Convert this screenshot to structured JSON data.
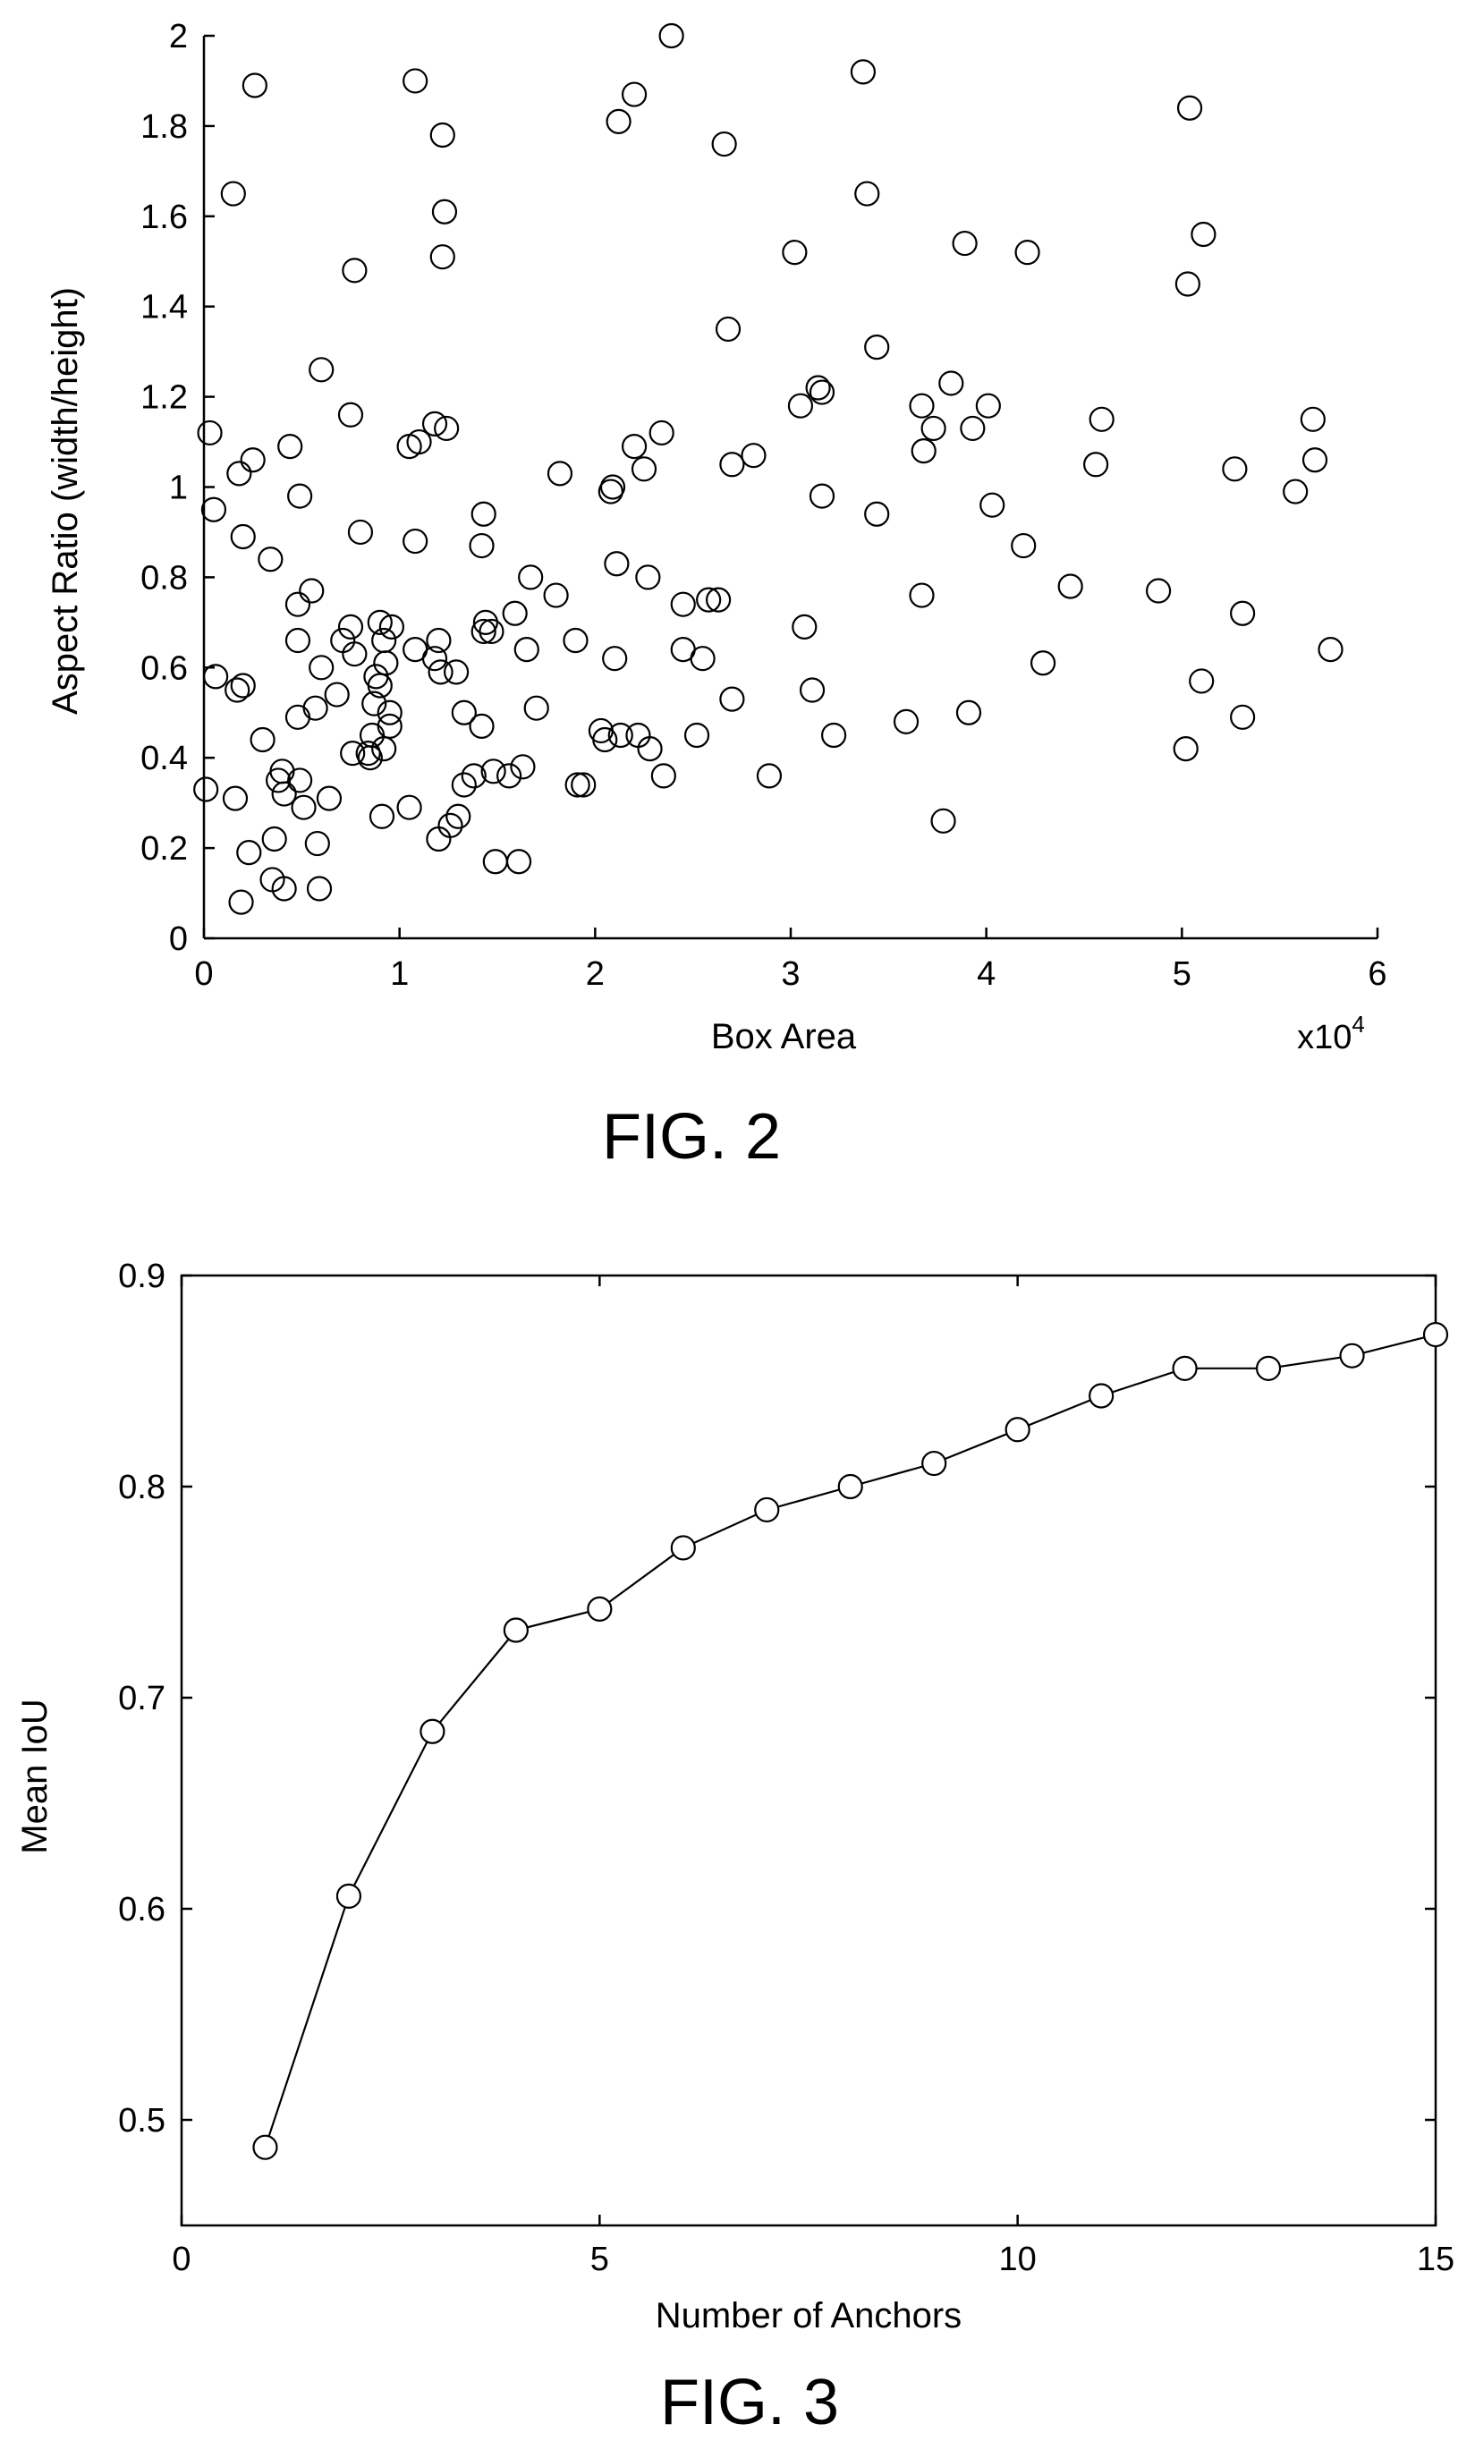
{
  "figures": [
    {
      "caption": "FIG. 2"
    },
    {
      "caption": "FIG. 3"
    }
  ],
  "chart_data": [
    {
      "type": "scatter",
      "title": "",
      "xlabel": "Box Area",
      "ylabel": "Aspect Ratio (width/height)",
      "x_multiplier_label": "x10^4",
      "xlim": [
        0,
        60000
      ],
      "ylim": [
        0,
        2
      ],
      "xticks": [
        0,
        10000,
        20000,
        30000,
        40000,
        50000,
        60000
      ],
      "xtick_labels": [
        "0",
        "1",
        "2",
        "3",
        "4",
        "5",
        "6"
      ],
      "yticks": [
        0,
        0.2,
        0.4,
        0.6,
        0.8,
        1.0,
        1.2,
        1.4,
        1.6,
        1.8,
        2.0
      ],
      "ytick_labels": [
        "0",
        "0.2",
        "0.4",
        "0.6",
        "0.8",
        "1",
        "1.2",
        "1.4",
        "1.6",
        "1.8",
        "2"
      ],
      "grid": false,
      "marker": "open-circle",
      "points": [
        [
          300,
          1.12
        ],
        [
          500,
          0.95
        ],
        [
          600,
          0.58
        ],
        [
          100,
          0.33
        ],
        [
          1500,
          1.65
        ],
        [
          2600,
          1.89
        ],
        [
          1800,
          1.03
        ],
        [
          2500,
          1.06
        ],
        [
          2000,
          0.89
        ],
        [
          3400,
          0.84
        ],
        [
          4400,
          1.09
        ],
        [
          4900,
          0.98
        ],
        [
          4800,
          0.74
        ],
        [
          5500,
          0.77
        ],
        [
          4800,
          0.66
        ],
        [
          4800,
          0.49
        ],
        [
          5700,
          0.51
        ],
        [
          6000,
          0.6
        ],
        [
          6000,
          1.26
        ],
        [
          7500,
          1.16
        ],
        [
          7700,
          1.48
        ],
        [
          8000,
          0.9
        ],
        [
          7500,
          0.69
        ],
        [
          7100,
          0.66
        ],
        [
          7700,
          0.63
        ],
        [
          6800,
          0.54
        ],
        [
          7600,
          0.41
        ],
        [
          6400,
          0.31
        ],
        [
          5900,
          0.11
        ],
        [
          5800,
          0.21
        ],
        [
          5100,
          0.29
        ],
        [
          4900,
          0.35
        ],
        [
          3800,
          0.35
        ],
        [
          4000,
          0.37
        ],
        [
          4100,
          0.32
        ],
        [
          3000,
          0.44
        ],
        [
          3600,
          0.22
        ],
        [
          3500,
          0.13
        ],
        [
          4100,
          0.11
        ],
        [
          2300,
          0.19
        ],
        [
          1900,
          0.08
        ],
        [
          1600,
          0.31
        ],
        [
          1700,
          0.55
        ],
        [
          2000,
          0.56
        ],
        [
          8800,
          0.58
        ],
        [
          9000,
          0.7
        ],
        [
          9200,
          0.66
        ],
        [
          9300,
          0.61
        ],
        [
          9600,
          0.69
        ],
        [
          9000,
          0.56
        ],
        [
          8700,
          0.52
        ],
        [
          8600,
          0.45
        ],
        [
          8400,
          0.41
        ],
        [
          8500,
          0.4
        ],
        [
          9500,
          0.5
        ],
        [
          9500,
          0.47
        ],
        [
          9200,
          0.42
        ],
        [
          9100,
          0.27
        ],
        [
          10500,
          0.29
        ],
        [
          10800,
          0.64
        ],
        [
          10800,
          0.88
        ],
        [
          10500,
          1.09
        ],
        [
          11000,
          1.1
        ],
        [
          10800,
          1.9
        ],
        [
          12200,
          1.78
        ],
        [
          12300,
          1.61
        ],
        [
          12200,
          1.51
        ],
        [
          11800,
          1.14
        ],
        [
          12400,
          1.13
        ],
        [
          11800,
          0.62
        ],
        [
          12000,
          0.66
        ],
        [
          12100,
          0.59
        ],
        [
          12900,
          0.59
        ],
        [
          12000,
          0.22
        ],
        [
          12600,
          0.25
        ],
        [
          13000,
          0.27
        ],
        [
          13300,
          0.34
        ],
        [
          13300,
          0.5
        ],
        [
          13800,
          0.36
        ],
        [
          14200,
          0.47
        ],
        [
          14300,
          0.68
        ],
        [
          14400,
          0.7
        ],
        [
          14700,
          0.68
        ],
        [
          14200,
          0.87
        ],
        [
          14300,
          0.94
        ],
        [
          14800,
          0.37
        ],
        [
          14900,
          0.17
        ],
        [
          15600,
          0.36
        ],
        [
          15900,
          0.72
        ],
        [
          16300,
          0.38
        ],
        [
          16100,
          0.17
        ],
        [
          16500,
          0.64
        ],
        [
          16700,
          0.8
        ],
        [
          17000,
          0.51
        ],
        [
          18000,
          0.76
        ],
        [
          18200,
          1.03
        ],
        [
          19000,
          0.66
        ],
        [
          19100,
          0.34
        ],
        [
          19400,
          0.34
        ],
        [
          20300,
          0.46
        ],
        [
          20500,
          0.44
        ],
        [
          21000,
          0.62
        ],
        [
          21100,
          0.83
        ],
        [
          20800,
          0.99
        ],
        [
          20900,
          1.0
        ],
        [
          21200,
          1.81
        ],
        [
          21300,
          0.45
        ],
        [
          22000,
          1.87
        ],
        [
          22000,
          1.09
        ],
        [
          22200,
          0.45
        ],
        [
          22500,
          1.04
        ],
        [
          22700,
          0.8
        ],
        [
          22800,
          0.42
        ],
        [
          23400,
          1.12
        ],
        [
          23500,
          0.36
        ],
        [
          23900,
          2.0
        ],
        [
          24500,
          0.74
        ],
        [
          24500,
          0.64
        ],
        [
          25200,
          0.45
        ],
        [
          25500,
          0.62
        ],
        [
          25800,
          0.75
        ],
        [
          26300,
          0.75
        ],
        [
          26600,
          1.76
        ],
        [
          26800,
          1.35
        ],
        [
          27000,
          1.05
        ],
        [
          27000,
          0.53
        ],
        [
          28100,
          1.07
        ],
        [
          28900,
          0.36
        ],
        [
          30200,
          1.52
        ],
        [
          30500,
          1.18
        ],
        [
          30700,
          0.69
        ],
        [
          31100,
          0.55
        ],
        [
          31400,
          1.22
        ],
        [
          31600,
          1.21
        ],
        [
          31600,
          0.98
        ],
        [
          32200,
          0.45
        ],
        [
          33700,
          1.92
        ],
        [
          33900,
          1.65
        ],
        [
          34400,
          1.31
        ],
        [
          34400,
          0.94
        ],
        [
          35900,
          0.48
        ],
        [
          36700,
          1.18
        ],
        [
          36800,
          1.08
        ],
        [
          36700,
          0.76
        ],
        [
          37300,
          1.13
        ],
        [
          37800,
          0.26
        ],
        [
          38200,
          1.23
        ],
        [
          38900,
          1.54
        ],
        [
          39100,
          0.5
        ],
        [
          39300,
          1.13
        ],
        [
          40100,
          1.18
        ],
        [
          40300,
          0.96
        ],
        [
          41900,
          0.87
        ],
        [
          42100,
          1.52
        ],
        [
          42900,
          0.61
        ],
        [
          44300,
          0.78
        ],
        [
          45600,
          1.05
        ],
        [
          45900,
          1.15
        ],
        [
          48800,
          0.77
        ],
        [
          50200,
          0.42
        ],
        [
          50300,
          1.45
        ],
        [
          50400,
          1.84
        ],
        [
          51000,
          0.57
        ],
        [
          51100,
          1.56
        ],
        [
          52700,
          1.04
        ],
        [
          53100,
          0.72
        ],
        [
          53100,
          0.49
        ],
        [
          55800,
          0.99
        ],
        [
          56700,
          1.15
        ],
        [
          56800,
          1.06
        ],
        [
          57600,
          0.64
        ]
      ]
    },
    {
      "type": "line",
      "title": "",
      "xlabel": "Number of Anchors",
      "ylabel": "Mean IoU",
      "xlim": [
        0,
        15
      ],
      "ylim": [
        0.45,
        0.9
      ],
      "xticks": [
        0,
        5,
        10,
        15
      ],
      "xtick_labels": [
        "0",
        "5",
        "10",
        "15"
      ],
      "yticks": [
        0.5,
        0.6,
        0.7,
        0.8,
        0.9
      ],
      "ytick_labels": [
        "0.5",
        "0.6",
        "0.7",
        "0.8",
        "0.9"
      ],
      "grid": false,
      "marker": "open-circle",
      "x": [
        1,
        2,
        3,
        4,
        5,
        6,
        7,
        8,
        9,
        10,
        11,
        12,
        13,
        14,
        15
      ],
      "series": [
        {
          "values": [
            0.487,
            0.606,
            0.684,
            0.732,
            0.742,
            0.771,
            0.789,
            0.8,
            0.811,
            0.827,
            0.843,
            0.856,
            0.856,
            0.862,
            0.872
          ]
        }
      ]
    }
  ]
}
